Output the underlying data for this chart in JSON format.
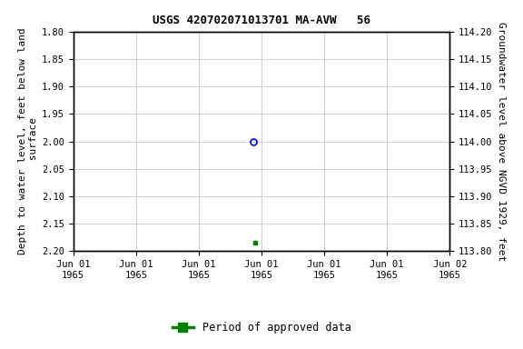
{
  "title": "USGS 420702071013701 MA-AVW   56",
  "left_ylabel": "Depth to water level, feet below land\n surface",
  "right_ylabel": "Groundwater level above NGVD 1929, feet",
  "ylim_left": [
    1.8,
    2.2
  ],
  "ylim_right": [
    113.8,
    114.2
  ],
  "data_blue": {
    "x_hours": 11.5,
    "depth": 2.0
  },
  "data_green": {
    "x_hours": 11.6,
    "depth": 2.185
  },
  "background_color": "#ffffff",
  "grid_color": "#c8c8c8",
  "blue_circle_color": "#0000cc",
  "green_square_color": "#008000",
  "legend_label": "Period of approved data",
  "left_ticks": [
    1.8,
    1.85,
    1.9,
    1.95,
    2.0,
    2.05,
    2.1,
    2.15,
    2.2
  ],
  "right_ticks": [
    113.8,
    113.85,
    113.9,
    113.95,
    114.0,
    114.05,
    114.1,
    114.15,
    114.2
  ],
  "x_tick_hours": [
    0,
    4,
    8,
    12,
    16,
    20,
    24
  ]
}
